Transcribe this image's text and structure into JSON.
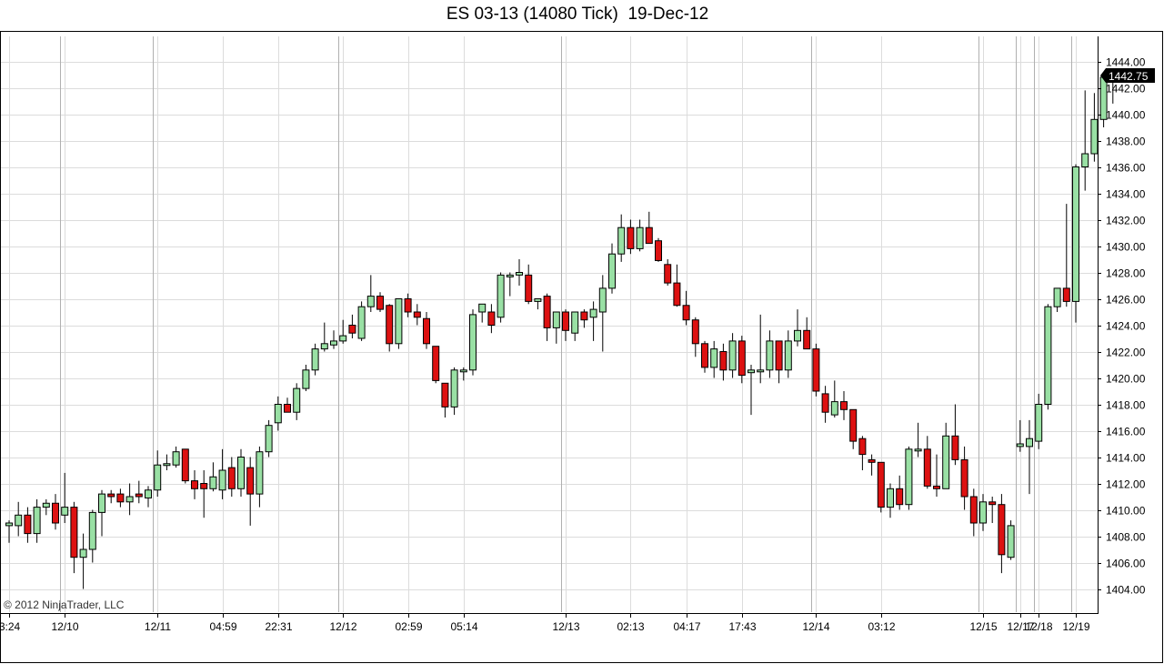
{
  "chart_data": {
    "type": "candlestick",
    "title": "ES 03-13 (14080 Tick)  19-Dec-12",
    "ylim": [
      1402.5,
      1446.0
    ],
    "y_ticks": [
      1404,
      1406,
      1408,
      1410,
      1412,
      1414,
      1416,
      1418,
      1420,
      1422,
      1424,
      1426,
      1428,
      1430,
      1432,
      1434,
      1436,
      1438,
      1440,
      1442,
      1444
    ],
    "y_tick_labels": [
      "1404.00",
      "1406.00",
      "1408.00",
      "1410.00",
      "1412.00",
      "1414.00",
      "1416.00",
      "1418.00",
      "1420.00",
      "1422.00",
      "1424.00",
      "1426.00",
      "1428.00",
      "1430.00",
      "1432.00",
      "1434.00",
      "1436.00",
      "1438.00",
      "1440.00",
      "1442.00",
      "1444.00"
    ],
    "last_price": "1442.75",
    "x_labels": [
      {
        "label": "3:24",
        "bar": 0
      },
      {
        "label": "12/10",
        "bar": 6
      },
      {
        "label": "12/11",
        "bar": 16
      },
      {
        "label": "04:59",
        "bar": 23
      },
      {
        "label": "22:31",
        "bar": 29
      },
      {
        "label": "12/12",
        "bar": 36
      },
      {
        "label": "02:59",
        "bar": 43
      },
      {
        "label": "05:14",
        "bar": 49
      },
      {
        "label": "12/13",
        "bar": 60
      },
      {
        "label": "02:13",
        "bar": 67
      },
      {
        "label": "04:17",
        "bar": 73
      },
      {
        "label": "17:43",
        "bar": 79
      },
      {
        "label": "12/14",
        "bar": 87
      },
      {
        "label": "03:12",
        "bar": 94
      },
      {
        "label": "12/15",
        "bar": 105
      },
      {
        "label": "12/17",
        "bar": 109
      },
      {
        "label": "12/18",
        "bar": 111
      },
      {
        "label": "12/19",
        "bar": 115
      }
    ],
    "series": [
      {
        "ohlc": [
          [
            1408.8,
            1409.2,
            1407.5,
            1409.0
          ],
          [
            1408.8,
            1410.6,
            1408.0,
            1409.6
          ],
          [
            1409.6,
            1410.2,
            1407.5,
            1408.2
          ],
          [
            1408.2,
            1410.8,
            1407.5,
            1410.2
          ],
          [
            1410.2,
            1410.8,
            1409.6,
            1410.5
          ],
          [
            1410.5,
            1411.2,
            1408.5,
            1409.0
          ],
          [
            1409.6,
            1412.8,
            1409.0,
            1410.2
          ],
          [
            1410.2,
            1410.6,
            1405.2,
            1406.4
          ],
          [
            1406.4,
            1408.2,
            1404.0,
            1407.0
          ],
          [
            1407.0,
            1410.0,
            1406.0,
            1409.8
          ],
          [
            1409.8,
            1411.5,
            1408.0,
            1411.2
          ],
          [
            1411.2,
            1411.5,
            1410.5,
            1411.0
          ],
          [
            1411.2,
            1411.6,
            1410.2,
            1410.6
          ],
          [
            1410.6,
            1412.0,
            1409.6,
            1411.0
          ],
          [
            1411.2,
            1412.2,
            1410.5,
            1411.0
          ],
          [
            1410.9,
            1411.8,
            1410.2,
            1411.5
          ],
          [
            1411.5,
            1414.5,
            1411.0,
            1413.4
          ],
          [
            1413.4,
            1414.2,
            1413.0,
            1413.5
          ],
          [
            1413.4,
            1414.8,
            1413.2,
            1414.4
          ],
          [
            1414.6,
            1414.6,
            1412.0,
            1412.2
          ],
          [
            1412.2,
            1413.0,
            1410.8,
            1411.6
          ],
          [
            1412.0,
            1413.0,
            1409.4,
            1411.6
          ],
          [
            1411.6,
            1413.6,
            1411.4,
            1412.5
          ],
          [
            1411.5,
            1414.6,
            1410.8,
            1413.0
          ],
          [
            1413.2,
            1414.0,
            1411.0,
            1411.6
          ],
          [
            1411.6,
            1414.6,
            1411.0,
            1414.0
          ],
          [
            1413.2,
            1414.0,
            1408.8,
            1411.2
          ],
          [
            1411.2,
            1414.8,
            1410.2,
            1414.4
          ],
          [
            1414.4,
            1416.8,
            1414.0,
            1416.4
          ],
          [
            1416.6,
            1418.6,
            1416.0,
            1418.0
          ],
          [
            1418.0,
            1418.5,
            1417.6,
            1417.4
          ],
          [
            1417.4,
            1419.6,
            1416.8,
            1419.2
          ],
          [
            1419.2,
            1421.0,
            1419.0,
            1420.6
          ],
          [
            1420.6,
            1422.6,
            1420.2,
            1422.2
          ],
          [
            1422.2,
            1424.2,
            1422.0,
            1422.6
          ],
          [
            1422.5,
            1423.6,
            1422.2,
            1422.8
          ],
          [
            1422.8,
            1424.4,
            1422.6,
            1423.2
          ],
          [
            1424.0,
            1424.8,
            1423.0,
            1423.4
          ],
          [
            1423.0,
            1425.8,
            1422.8,
            1425.4
          ],
          [
            1425.4,
            1427.8,
            1425.0,
            1426.2
          ],
          [
            1426.2,
            1426.5,
            1425.0,
            1425.2
          ],
          [
            1425.5,
            1425.6,
            1422.0,
            1422.6
          ],
          [
            1422.6,
            1426.0,
            1422.2,
            1426.0
          ],
          [
            1426.0,
            1426.4,
            1424.6,
            1425.0
          ],
          [
            1425.0,
            1425.6,
            1424.0,
            1424.6
          ],
          [
            1424.5,
            1425.0,
            1422.2,
            1422.6
          ],
          [
            1422.4,
            1422.4,
            1419.6,
            1419.8
          ],
          [
            1419.6,
            1419.6,
            1417.0,
            1417.8
          ],
          [
            1417.8,
            1420.8,
            1417.2,
            1420.6
          ],
          [
            1420.6,
            1420.8,
            1419.8,
            1420.6
          ],
          [
            1420.6,
            1425.2,
            1420.2,
            1424.8
          ],
          [
            1425.0,
            1425.6,
            1424.2,
            1425.6
          ],
          [
            1425.0,
            1425.6,
            1423.4,
            1424.0
          ],
          [
            1424.6,
            1428.0,
            1424.2,
            1427.8
          ],
          [
            1427.8,
            1428.0,
            1426.2,
            1427.8
          ],
          [
            1427.8,
            1429.0,
            1427.0,
            1428.0
          ],
          [
            1427.8,
            1428.6,
            1425.6,
            1425.8
          ],
          [
            1425.8,
            1426.0,
            1425.2,
            1426.0
          ],
          [
            1426.2,
            1426.4,
            1422.8,
            1423.8
          ],
          [
            1423.8,
            1425.0,
            1422.6,
            1425.0
          ],
          [
            1425.0,
            1425.2,
            1422.8,
            1423.6
          ],
          [
            1423.4,
            1425.0,
            1422.8,
            1425.0
          ],
          [
            1425.0,
            1425.2,
            1423.8,
            1424.4
          ],
          [
            1424.6,
            1425.8,
            1422.8,
            1425.2
          ],
          [
            1425.0,
            1427.8,
            1422.0,
            1426.8
          ],
          [
            1426.8,
            1430.2,
            1426.4,
            1429.4
          ],
          [
            1429.4,
            1432.4,
            1428.8,
            1431.4
          ],
          [
            1431.4,
            1432.0,
            1429.4,
            1429.8
          ],
          [
            1429.8,
            1432.0,
            1429.6,
            1431.4
          ],
          [
            1431.4,
            1432.6,
            1430.4,
            1430.2
          ],
          [
            1430.4,
            1430.6,
            1428.8,
            1428.9
          ],
          [
            1428.6,
            1429.0,
            1427.0,
            1427.2
          ],
          [
            1427.2,
            1428.6,
            1425.4,
            1425.5
          ],
          [
            1425.5,
            1426.6,
            1424.0,
            1424.4
          ],
          [
            1424.4,
            1424.6,
            1421.6,
            1422.6
          ],
          [
            1422.6,
            1422.8,
            1420.4,
            1420.8
          ],
          [
            1420.8,
            1422.8,
            1420.0,
            1422.2
          ],
          [
            1422.0,
            1422.6,
            1419.8,
            1420.6
          ],
          [
            1420.6,
            1423.4,
            1420.0,
            1422.8
          ],
          [
            1422.8,
            1423.2,
            1419.6,
            1420.2
          ],
          [
            1420.4,
            1421.0,
            1417.2,
            1420.6
          ],
          [
            1420.6,
            1424.8,
            1419.6,
            1420.6
          ],
          [
            1420.6,
            1423.6,
            1420.0,
            1422.8
          ],
          [
            1422.8,
            1422.8,
            1419.6,
            1420.6
          ],
          [
            1420.6,
            1423.6,
            1420.0,
            1422.8
          ],
          [
            1422.8,
            1425.2,
            1422.4,
            1423.6
          ],
          [
            1423.6,
            1424.6,
            1422.4,
            1422.2
          ],
          [
            1422.2,
            1422.6,
            1418.6,
            1419.0
          ],
          [
            1418.8,
            1419.4,
            1416.6,
            1417.4
          ],
          [
            1417.2,
            1419.8,
            1417.0,
            1418.2
          ],
          [
            1418.2,
            1419.0,
            1416.8,
            1417.6
          ],
          [
            1417.6,
            1417.6,
            1414.6,
            1415.2
          ],
          [
            1415.4,
            1415.6,
            1413.0,
            1414.2
          ],
          [
            1413.8,
            1414.2,
            1412.6,
            1413.6
          ],
          [
            1413.6,
            1413.6,
            1409.8,
            1410.2
          ],
          [
            1410.2,
            1412.0,
            1409.4,
            1411.6
          ],
          [
            1411.6,
            1412.6,
            1410.0,
            1410.4
          ],
          [
            1410.4,
            1414.8,
            1410.0,
            1414.6
          ],
          [
            1414.6,
            1416.6,
            1414.0,
            1414.6
          ],
          [
            1414.6,
            1415.6,
            1411.6,
            1411.8
          ],
          [
            1411.8,
            1414.2,
            1411.0,
            1411.6
          ],
          [
            1411.6,
            1416.6,
            1411.6,
            1415.6
          ],
          [
            1415.6,
            1418.0,
            1413.4,
            1413.8
          ],
          [
            1413.8,
            1414.8,
            1410.0,
            1411.0
          ],
          [
            1411.0,
            1411.6,
            1408.0,
            1409.0
          ],
          [
            1409.0,
            1411.2,
            1408.4,
            1410.6
          ],
          [
            1410.6,
            1411.0,
            1409.0,
            1410.4
          ],
          [
            1410.4,
            1411.2,
            1405.2,
            1406.6
          ],
          [
            1406.4,
            1409.2,
            1406.2,
            1408.8
          ],
          [
            1414.8,
            1416.8,
            1414.4,
            1415.0
          ],
          [
            1414.8,
            1416.8,
            1411.2,
            1415.4
          ],
          [
            1415.2,
            1418.8,
            1414.6,
            1418.0
          ],
          [
            1418.0,
            1425.6,
            1417.6,
            1425.4
          ],
          [
            1425.4,
            1426.8,
            1425.0,
            1426.8
          ],
          [
            1426.8,
            1433.2,
            1425.4,
            1425.8
          ],
          [
            1425.8,
            1436.2,
            1424.2,
            1436.0
          ],
          [
            1436.0,
            1441.8,
            1434.2,
            1437.0
          ],
          [
            1437.0,
            1441.6,
            1436.4,
            1439.6
          ],
          [
            1439.6,
            1442.8,
            1439.0,
            1442.8
          ],
          [
            1442.6,
            1443.4,
            1440.8,
            1442.8
          ]
        ]
      }
    ]
  },
  "copyright": "© 2012 NinjaTrader, LLC",
  "colors": {
    "up": "#99e0a4",
    "down": "#dd1111",
    "grid": "#dcdcdc",
    "sep": "#b0b0b0",
    "price_tag": "#000000"
  }
}
